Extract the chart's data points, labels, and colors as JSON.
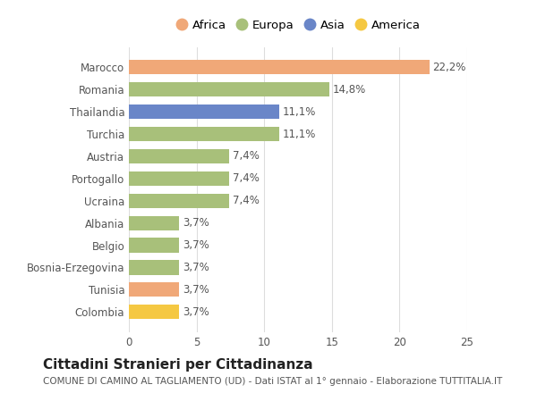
{
  "categories": [
    "Colombia",
    "Tunisia",
    "Bosnia-Erzegovina",
    "Belgio",
    "Albania",
    "Ucraina",
    "Portogallo",
    "Austria",
    "Turchia",
    "Thailandia",
    "Romania",
    "Marocco"
  ],
  "values": [
    3.7,
    3.7,
    3.7,
    3.7,
    3.7,
    7.4,
    7.4,
    7.4,
    11.1,
    11.1,
    14.8,
    22.2
  ],
  "colors": [
    "#F5C842",
    "#F0A878",
    "#A8C07A",
    "#A8C07A",
    "#A8C07A",
    "#A8C07A",
    "#A8C07A",
    "#A8C07A",
    "#A8C07A",
    "#6A86C8",
    "#A8C07A",
    "#F0A878"
  ],
  "labels": [
    "3,7%",
    "3,7%",
    "3,7%",
    "3,7%",
    "3,7%",
    "7,4%",
    "7,4%",
    "7,4%",
    "11,1%",
    "11,1%",
    "14,8%",
    "22,2%"
  ],
  "legend": [
    {
      "label": "Africa",
      "color": "#F0A878"
    },
    {
      "label": "Europa",
      "color": "#A8C07A"
    },
    {
      "label": "Asia",
      "color": "#6A86C8"
    },
    {
      "label": "America",
      "color": "#F5C842"
    }
  ],
  "xlim": [
    0,
    25
  ],
  "xticks": [
    0,
    5,
    10,
    15,
    20,
    25
  ],
  "title": "Cittadini Stranieri per Cittadinanza",
  "subtitle": "COMUNE DI CAMINO AL TAGLIAMENTO (UD) - Dati ISTAT al 1° gennaio - Elaborazione TUTTITALIA.IT",
  "bg_color": "#FFFFFF",
  "grid_color": "#DDDDDD",
  "bar_height": 0.65,
  "label_fontsize": 8.5,
  "title_fontsize": 11,
  "subtitle_fontsize": 7.5,
  "tick_fontsize": 8.5,
  "legend_fontsize": 9.5
}
